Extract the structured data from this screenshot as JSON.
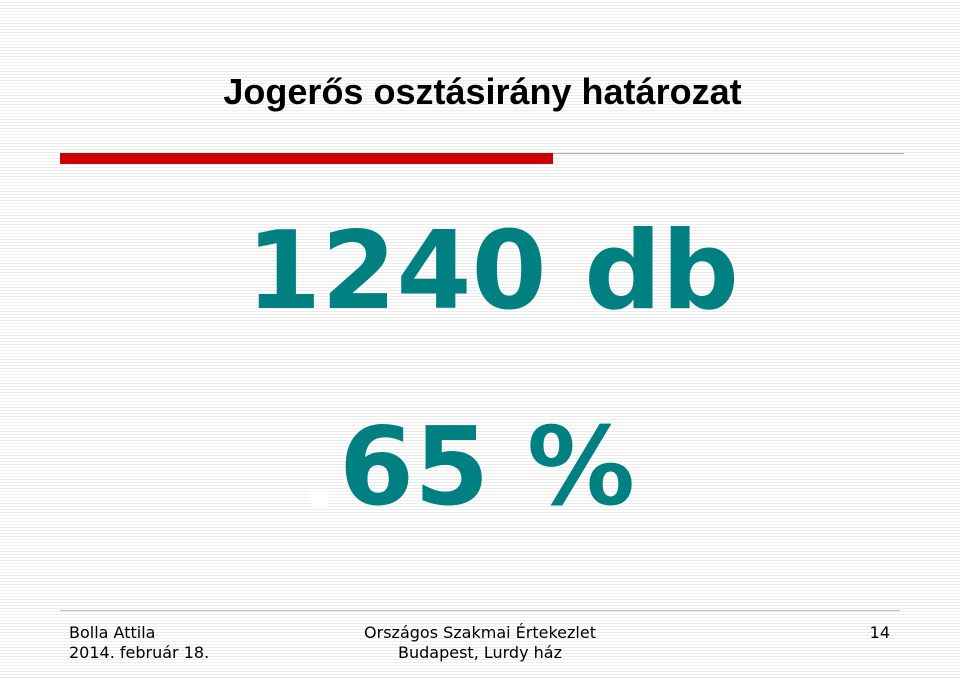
{
  "slide": {
    "title": "Jogerős osztásirány határozat",
    "count_text": "1240 db",
    "percent_text": "65 %",
    "accent_color": "#cc0000",
    "value_color": "#008080"
  },
  "footer": {
    "author": "Bolla Attila",
    "date": "2014. február 18.",
    "event": "Országos Szakmai Értekezlet",
    "location": "Budapest, Lurdy ház",
    "page_number": "14"
  }
}
